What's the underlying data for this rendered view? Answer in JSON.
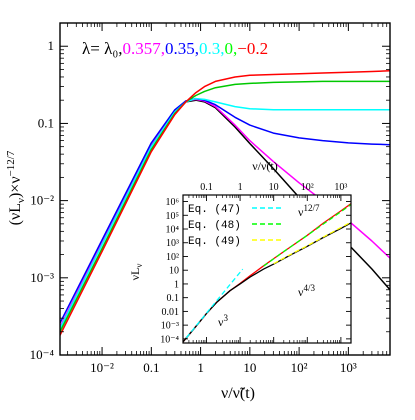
{
  "chart_data": [
    {
      "type": "line",
      "xlabel": "ν/ν̃(t)",
      "ylabel": "(νLν)×ν^(−12/7)",
      "x_scale": "log",
      "y_scale": "log",
      "xlim": [
        0.0014,
        7000
      ],
      "ylim": [
        0.0001,
        2
      ],
      "x_ticks": [
        "10⁻²",
        "0.1",
        "1",
        "10",
        "10²",
        "10³"
      ],
      "y_ticks": [
        "10⁻⁴",
        "10⁻³",
        "10⁻²",
        "0.1",
        "1"
      ],
      "legend": {
        "prefix": "λ=",
        "entries": [
          {
            "label": "λ₀,",
            "color": "#000000"
          },
          {
            "label": "0.357,",
            "color": "#ff00ff"
          },
          {
            "label": "0.35,",
            "color": "#0000ff"
          },
          {
            "label": "0.3,",
            "color": "#00ffff"
          },
          {
            "label": "0,",
            "color": "#00ff00"
          },
          {
            "label": "−0.2",
            "color": "#ff0000"
          }
        ]
      },
      "series": [
        {
          "color": "#000000",
          "x": [
            0.0014,
            0.01,
            0.1,
            0.3,
            0.5,
            0.8,
            1.2,
            2,
            5,
            10,
            30,
            100,
            300,
            1000,
            3000,
            7000
          ],
          "y": [
            0.00022,
            0.0028,
            0.052,
            0.14,
            0.19,
            0.2,
            0.19,
            0.16,
            0.09,
            0.055,
            0.026,
            0.011,
            0.0055,
            0.0027,
            0.0013,
            0.0007
          ]
        },
        {
          "color": "#ff00ff",
          "x": [
            0.0014,
            0.01,
            0.1,
            0.3,
            0.5,
            0.8,
            1.2,
            2,
            5,
            10,
            30,
            100,
            300,
            1000,
            3000,
            7000
          ],
          "y": [
            0.00023,
            0.0029,
            0.054,
            0.145,
            0.195,
            0.205,
            0.195,
            0.165,
            0.095,
            0.06,
            0.032,
            0.017,
            0.01,
            0.0055,
            0.003,
            0.0018
          ]
        },
        {
          "color": "#0000ff",
          "x": [
            0.0014,
            0.01,
            0.1,
            0.3,
            0.5,
            0.8,
            1.2,
            2,
            5,
            10,
            30,
            100,
            300,
            1000,
            3000,
            7000
          ],
          "y": [
            0.00026,
            0.0031,
            0.056,
            0.15,
            0.195,
            0.21,
            0.2,
            0.175,
            0.12,
            0.095,
            0.075,
            0.065,
            0.06,
            0.056,
            0.054,
            0.053
          ]
        },
        {
          "color": "#00ffff",
          "x": [
            0.0014,
            0.01,
            0.1,
            0.3,
            0.5,
            0.8,
            1.2,
            2,
            5,
            10,
            30,
            100,
            300,
            1000,
            3000,
            7000
          ],
          "y": [
            0.00022,
            0.0027,
            0.05,
            0.14,
            0.19,
            0.21,
            0.205,
            0.19,
            0.165,
            0.155,
            0.15,
            0.15,
            0.15,
            0.15,
            0.15,
            0.15
          ]
        },
        {
          "color": "#00c800",
          "x": [
            0.0014,
            0.01,
            0.1,
            0.3,
            0.5,
            0.8,
            1.2,
            2,
            5,
            10,
            30,
            100,
            300,
            1000,
            3000,
            7000
          ],
          "y": [
            0.0002,
            0.0024,
            0.046,
            0.135,
            0.19,
            0.23,
            0.26,
            0.29,
            0.32,
            0.33,
            0.34,
            0.345,
            0.35,
            0.35,
            0.35,
            0.35
          ]
        },
        {
          "color": "#ff0000",
          "x": [
            0.0014,
            0.01,
            0.1,
            0.3,
            0.5,
            0.8,
            1.2,
            2,
            5,
            10,
            30,
            100,
            300,
            1000,
            3000,
            7000
          ],
          "y": [
            0.00018,
            0.0022,
            0.043,
            0.13,
            0.19,
            0.25,
            0.3,
            0.35,
            0.4,
            0.42,
            0.43,
            0.44,
            0.45,
            0.46,
            0.47,
            0.48
          ]
        }
      ]
    },
    {
      "type": "line",
      "xlabel": "ν/ν̃(t)",
      "ylabel": "νLν",
      "x_scale": "log",
      "y_scale": "log",
      "xlim": [
        0.02,
        2000
      ],
      "ylim": [
        5e-05,
        3000000
      ],
      "x_ticks": [
        "0.1",
        "1",
        "10",
        "10²",
        "10³"
      ],
      "y_ticks": [
        "10⁻⁴",
        "10⁻³",
        "0.01",
        "0.1",
        "1",
        "10",
        "10²",
        "10³",
        "10⁴",
        "10⁵",
        "10⁶"
      ],
      "legend": [
        {
          "label": "Eq. (47)",
          "color": "#00ffff",
          "style": "dashed"
        },
        {
          "label": "Eq. (48)",
          "color": "#00ff00",
          "style": "dashed"
        },
        {
          "label": "Eq. (49)",
          "color": "#ffff00",
          "style": "dashed"
        }
      ],
      "annotations": [
        "ν³",
        "ν^(12/7)",
        "ν^(4/3)"
      ],
      "series": [
        {
          "color": "#ff0000",
          "x": [
            0.02,
            0.05,
            0.1,
            0.2,
            0.5,
            1,
            2,
            5,
            10,
            30,
            100,
            300,
            1000,
            2000
          ],
          "y": [
            6e-05,
            0.0009,
            0.007,
            0.045,
            0.32,
            1.1,
            4,
            21,
            70,
            450,
            3500,
            27000,
            210000,
            700000
          ]
        },
        {
          "color": "#000000",
          "x": [
            0.02,
            0.05,
            0.1,
            0.2,
            0.5,
            1,
            2,
            5,
            10,
            30,
            100,
            300,
            1000,
            2000
          ],
          "y": [
            6e-05,
            0.0009,
            0.007,
            0.045,
            0.32,
            1.0,
            3.2,
            12,
            28,
            120,
            550,
            2400,
            11000,
            28000
          ]
        },
        {
          "color": "#00ffff",
          "style": "dashed",
          "x": [
            0.025,
            0.1,
            0.5,
            1.2
          ],
          "y": [
            0.00012,
            0.0075,
            0.9,
            12
          ]
        },
        {
          "color": "#00ff00",
          "style": "dashed",
          "x": [
            5,
            20,
            100,
            500,
            2000
          ],
          "y": [
            20,
            230,
            3500,
            55000,
            600000
          ]
        },
        {
          "color": "#ffff00",
          "style": "dashed",
          "x": [
            10,
            30,
            100,
            400,
            2000
          ],
          "y": [
            30,
            130,
            600,
            3800,
            32000
          ]
        }
      ]
    }
  ]
}
